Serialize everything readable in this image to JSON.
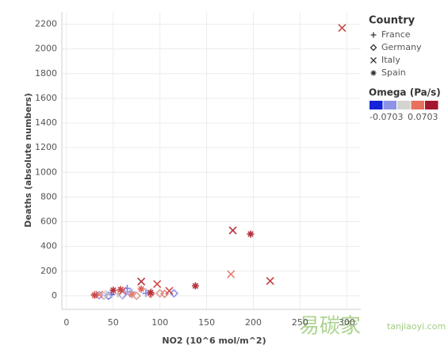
{
  "chart_data": {
    "type": "scatter",
    "x_label": "NO2 (10^6 mol/m^2)",
    "y_label": "Deaths (absolute numbers)",
    "xlim": [
      -5,
      315
    ],
    "ylim": [
      -110,
      2300
    ],
    "xticks": [
      0,
      50,
      100,
      150,
      200,
      250,
      300
    ],
    "yticks": [
      0,
      200,
      400,
      600,
      800,
      1000,
      1200,
      1400,
      1600,
      1800,
      2000,
      2200
    ],
    "grid": true,
    "legend_title": "Country",
    "color_title": "Omega (Pa/s)",
    "color_range": [
      -0.0703,
      0.0703
    ],
    "colormap": [
      "#1424d8",
      "#8e93e8",
      "#d3d4d0",
      "#e8705e",
      "#a3172f"
    ],
    "series": [
      {
        "name": "France",
        "marker": "plus",
        "x": [
          65,
          48,
          30,
          55,
          70,
          85
        ],
        "y": [
          60,
          10,
          10,
          15,
          30,
          20
        ],
        "omega": [
          -0.04,
          -0.05,
          0.02,
          0.01,
          -0.03,
          -0.04
        ]
      },
      {
        "name": "Germany",
        "marker": "diamond",
        "x": [
          35,
          45,
          60,
          75,
          90,
          100,
          105,
          115,
          40
        ],
        "y": [
          5,
          0,
          5,
          0,
          15,
          20,
          15,
          20,
          0
        ],
        "omega": [
          -0.03,
          -0.04,
          -0.02,
          0.02,
          0.03,
          0.02,
          0.025,
          -0.035,
          0.01
        ]
      },
      {
        "name": "Italy",
        "marker": "x",
        "x": [
          295,
          178,
          218,
          80,
          97,
          176,
          88,
          65,
          45,
          35,
          60,
          110
        ],
        "y": [
          2170,
          530,
          120,
          115,
          95,
          175,
          30,
          20,
          15,
          10,
          40,
          40
        ],
        "omega": [
          0.05,
          0.06,
          0.055,
          0.06,
          0.05,
          0.03,
          -0.02,
          -0.03,
          -0.01,
          0.03,
          0.04,
          0.05
        ]
      },
      {
        "name": "Spain",
        "marker": "star",
        "x": [
          197,
          138,
          50,
          58,
          80,
          90,
          30,
          70
        ],
        "y": [
          500,
          80,
          45,
          50,
          55,
          25,
          5,
          10
        ],
        "omega": [
          0.06,
          0.06,
          0.06,
          0.05,
          0.04,
          0.06,
          0.05,
          0.03
        ]
      }
    ],
    "watermark": "易碳家",
    "watermark_url": "tanjiaoyi.com"
  }
}
